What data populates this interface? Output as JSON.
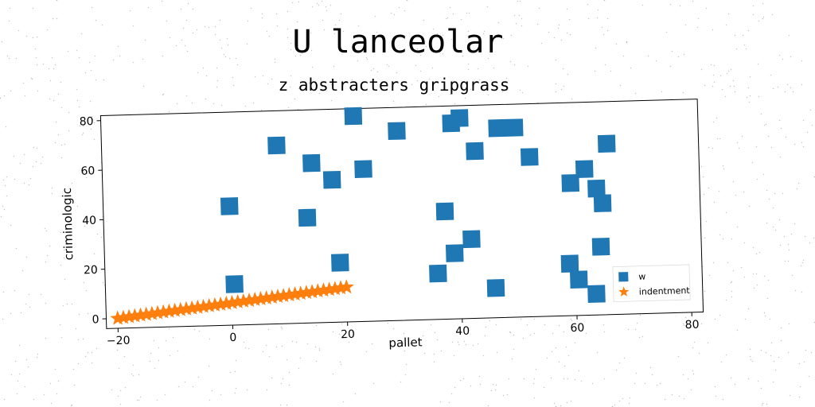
{
  "title": "U lanceolar",
  "subtitle": "z abstracters gripgrass",
  "chart_data": {
    "type": "scatter",
    "xlabel": "pallet",
    "ylabel": "criminologic",
    "xlim": [
      -22,
      82
    ],
    "ylim": [
      -4,
      82
    ],
    "xticks": [
      "−20",
      "0",
      "20",
      "40",
      "60",
      "80"
    ],
    "xtick_values": [
      -20,
      0,
      20,
      40,
      60,
      80
    ],
    "yticks": [
      "0",
      "20",
      "40",
      "60",
      "80"
    ],
    "ytick_values": [
      0,
      20,
      40,
      60,
      80
    ],
    "grid": false,
    "legend_position": "lower-right",
    "series": [
      {
        "name": "w",
        "marker": "square",
        "color": "#1f77b4",
        "points": [
          [
            0,
            44
          ],
          [
            0.5,
            12.5
          ],
          [
            8.5,
            68
          ],
          [
            13.5,
            38.5
          ],
          [
            14.5,
            60.5
          ],
          [
            18,
            53.5
          ],
          [
            19,
            20
          ],
          [
            22,
            79
          ],
          [
            23.5,
            57.5
          ],
          [
            29.5,
            72.5
          ],
          [
            36,
            14.5
          ],
          [
            37.5,
            39.5
          ],
          [
            39,
            75
          ],
          [
            39,
            22.5
          ],
          [
            40.5,
            77
          ],
          [
            42,
            28
          ],
          [
            43,
            63.5
          ],
          [
            46,
            8
          ],
          [
            47,
            72.5
          ],
          [
            50,
            72.5
          ],
          [
            52.5,
            60.5
          ],
          [
            59,
            17
          ],
          [
            59.5,
            49.5
          ],
          [
            60.5,
            10.5
          ],
          [
            62,
            55
          ],
          [
            63.5,
            4.5
          ],
          [
            64,
            47
          ],
          [
            64.5,
            23.5
          ],
          [
            65,
            41
          ],
          [
            66,
            65
          ]
        ]
      },
      {
        "name": "indentment",
        "marker": "star",
        "color": "#ff7f0e",
        "x_range": [
          -20,
          20
        ],
        "slope": 0.25,
        "intercept": 5,
        "count": 41
      }
    ]
  }
}
